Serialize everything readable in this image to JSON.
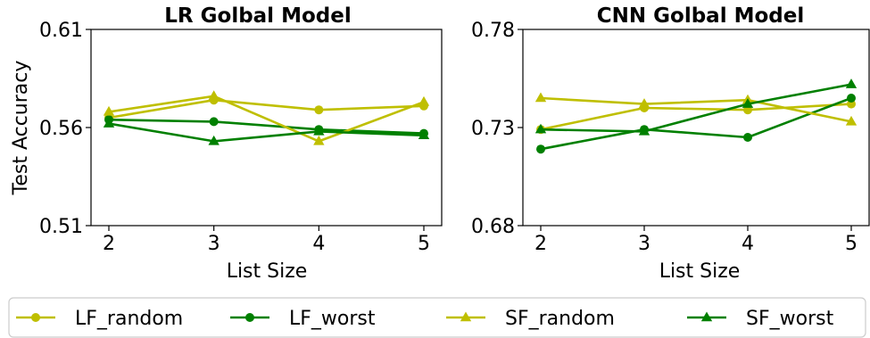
{
  "chart_data": [
    {
      "type": "line",
      "title": "LR Golbal Model",
      "xlabel": "List Size",
      "ylabel": "Test Accuracy",
      "x": [
        2,
        3,
        4,
        5
      ],
      "xticks": [
        "2",
        "3",
        "4",
        "5"
      ],
      "ylim": [
        0.51,
        0.61
      ],
      "yticks": [
        "0.51",
        "0.56",
        "0.61"
      ],
      "grid": false,
      "series": [
        {
          "name": "LF_random",
          "values": [
            0.565,
            0.574,
            0.569,
            0.571
          ],
          "color": "#bfbf00",
          "marker": "circle"
        },
        {
          "name": "LF_worst",
          "values": [
            0.564,
            0.563,
            0.559,
            0.557
          ],
          "color": "#008000",
          "marker": "circle"
        },
        {
          "name": "SF_random",
          "values": [
            0.568,
            0.576,
            0.553,
            0.573
          ],
          "color": "#bfbf00",
          "marker": "triangle"
        },
        {
          "name": "SF_worst",
          "values": [
            0.562,
            0.553,
            0.558,
            0.556
          ],
          "color": "#008000",
          "marker": "triangle"
        }
      ]
    },
    {
      "type": "line",
      "title": "CNN Golbal Model",
      "xlabel": "List Size",
      "ylabel": "",
      "x": [
        2,
        3,
        4,
        5
      ],
      "xticks": [
        "2",
        "3",
        "4",
        "5"
      ],
      "ylim": [
        0.68,
        0.78
      ],
      "yticks": [
        "0.68",
        "0.73",
        "0.78"
      ],
      "grid": false,
      "series": [
        {
          "name": "LF_random",
          "values": [
            0.729,
            0.74,
            0.739,
            0.742
          ],
          "color": "#bfbf00",
          "marker": "circle"
        },
        {
          "name": "LF_worst",
          "values": [
            0.719,
            0.729,
            0.725,
            0.745
          ],
          "color": "#008000",
          "marker": "circle"
        },
        {
          "name": "SF_random",
          "values": [
            0.745,
            0.742,
            0.744,
            0.733
          ],
          "color": "#bfbf00",
          "marker": "triangle"
        },
        {
          "name": "SF_worst",
          "values": [
            0.729,
            0.728,
            0.742,
            0.752
          ],
          "color": "#008000",
          "marker": "triangle"
        }
      ]
    }
  ],
  "legend": {
    "placement": "bottom",
    "entries": [
      {
        "label": "LF_random",
        "color": "#bfbf00",
        "marker": "circle"
      },
      {
        "label": "LF_worst",
        "color": "#008000",
        "marker": "circle"
      },
      {
        "label": "SF_random",
        "color": "#bfbf00",
        "marker": "triangle"
      },
      {
        "label": "SF_worst",
        "color": "#008000",
        "marker": "triangle"
      }
    ]
  }
}
